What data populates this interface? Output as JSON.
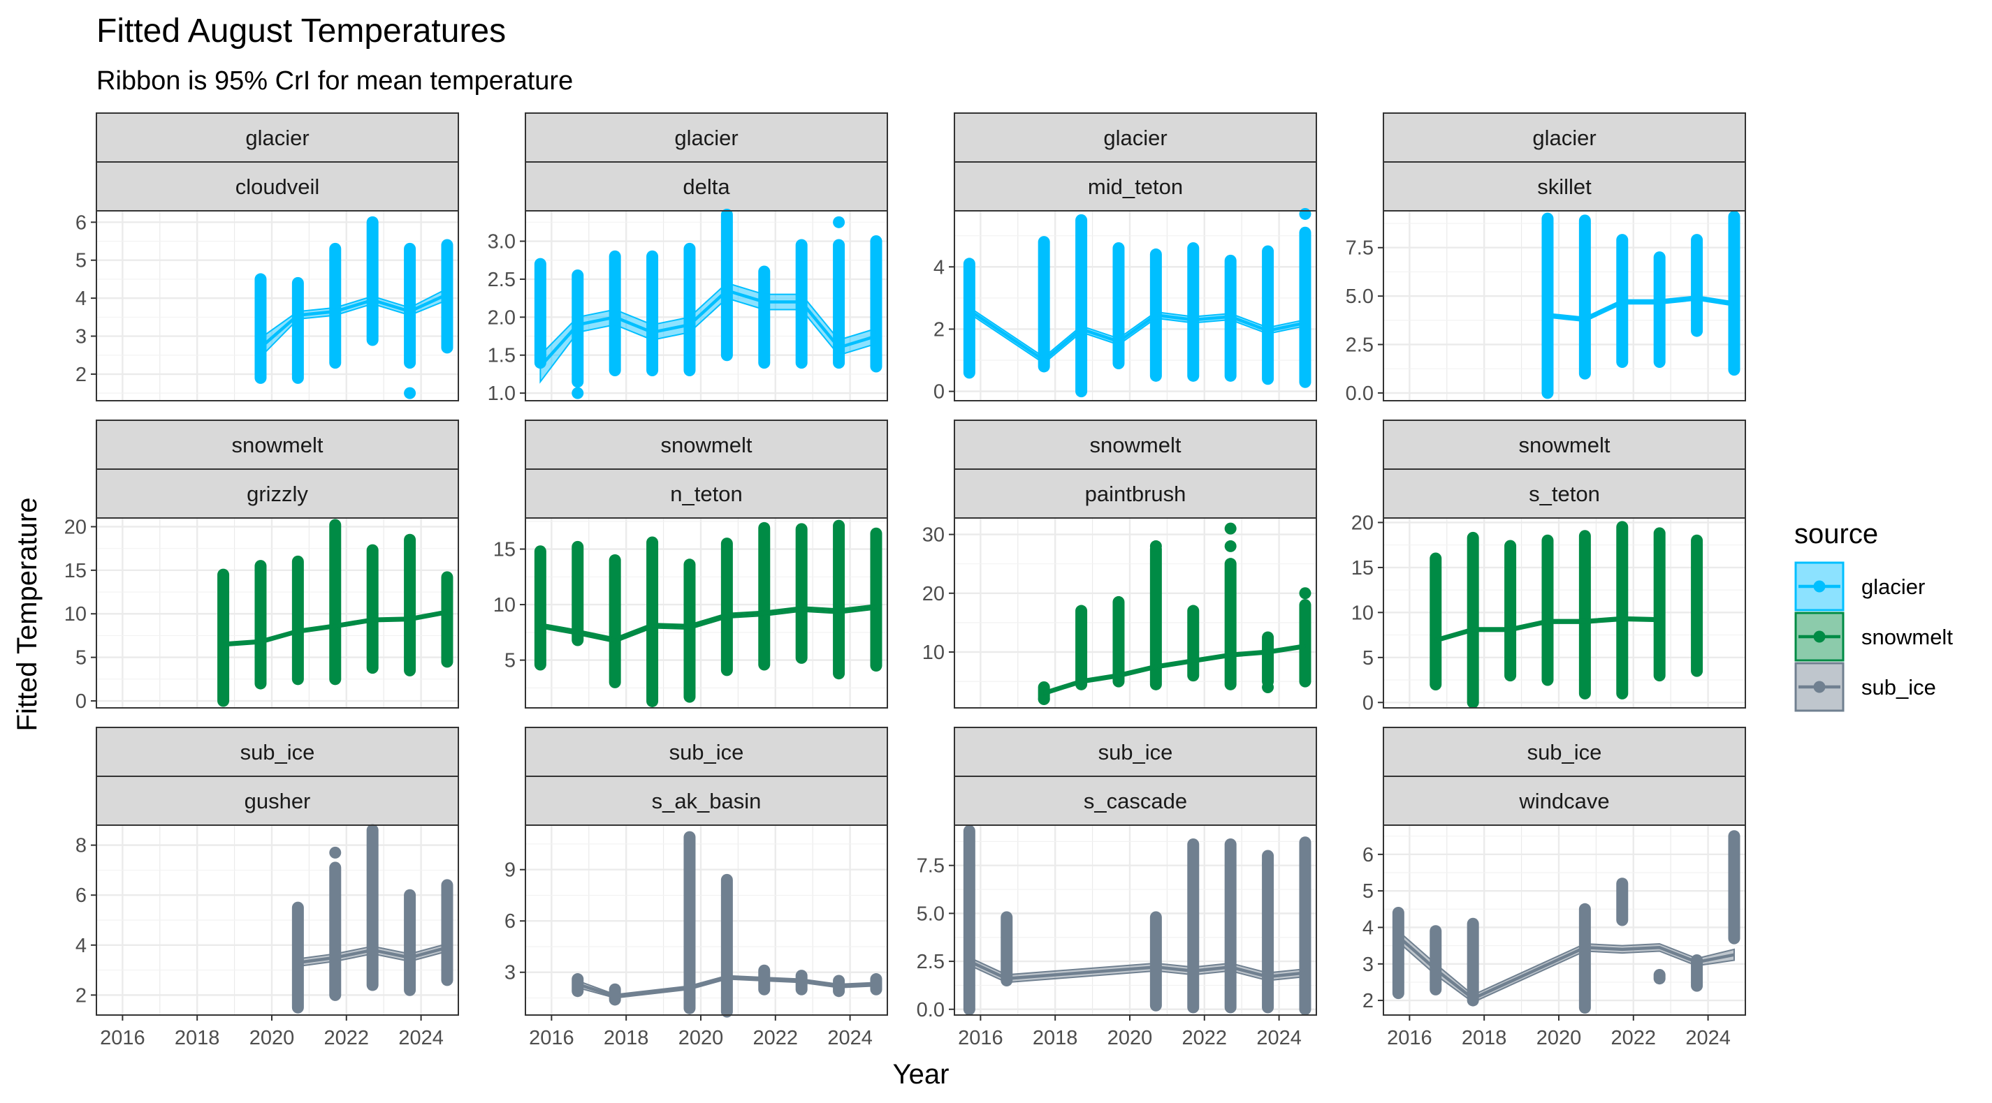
{
  "chart_data": {
    "type": "line",
    "title": "Fitted August Temperatures",
    "subtitle": "Ribbon is 95% CrI for mean temperature",
    "xlabel": "Year",
    "ylabel": "Fitted Temperature",
    "xlim": [
      2015.3,
      2025.0
    ],
    "x_ticks": [
      2016,
      2018,
      2020,
      2022,
      2024
    ],
    "grid": true,
    "legend": {
      "title": "source",
      "position": "right",
      "entries": [
        {
          "name": "glacier",
          "color": "#00BFFF"
        },
        {
          "name": "snowmelt",
          "color": "#008B45"
        },
        {
          "name": "sub_ice",
          "color": "#708090"
        }
      ]
    },
    "panels": [
      {
        "source": "glacier",
        "site": "cloudveil",
        "ylim": [
          1.3,
          6.3
        ],
        "y_ticks": [
          2,
          3,
          4,
          5,
          6
        ],
        "y_tick_labels": [
          "2",
          "3",
          "4",
          "5",
          "6"
        ],
        "x": [
          2019.7,
          2020.7,
          2021.7,
          2022.7,
          2023.7,
          2024.7
        ],
        "mean": [
          2.7,
          3.55,
          3.65,
          3.95,
          3.65,
          4.1
        ],
        "lower": [
          2.45,
          3.45,
          3.55,
          3.85,
          3.55,
          3.95
        ],
        "upper": [
          2.95,
          3.65,
          3.75,
          4.05,
          3.75,
          4.25
        ],
        "pts_min": [
          1.9,
          1.9,
          2.3,
          2.9,
          2.3,
          2.7
        ],
        "pts_max": [
          4.5,
          4.4,
          5.3,
          6.0,
          5.3,
          5.4
        ],
        "outliers": [
          {
            "x": 2023.7,
            "y": 1.5
          }
        ]
      },
      {
        "source": "glacier",
        "site": "delta",
        "ylim": [
          0.9,
          3.4
        ],
        "y_ticks": [
          1.0,
          1.5,
          2.0,
          2.5,
          3.0
        ],
        "y_tick_labels": [
          "1.0",
          "1.5",
          "2.0",
          "2.5",
          "3.0"
        ],
        "x": [
          2015.7,
          2016.7,
          2017.7,
          2018.7,
          2019.7,
          2020.7,
          2021.7,
          2022.7,
          2023.7,
          2024.7
        ],
        "mean": [
          1.35,
          1.9,
          2.0,
          1.8,
          1.9,
          2.35,
          2.2,
          2.2,
          1.6,
          1.75
        ],
        "lower": [
          1.15,
          1.8,
          1.9,
          1.7,
          1.8,
          2.25,
          2.1,
          2.1,
          1.5,
          1.65
        ],
        "upper": [
          1.5,
          2.0,
          2.1,
          1.9,
          2.0,
          2.45,
          2.3,
          2.3,
          1.7,
          1.85
        ],
        "pts_min": [
          1.4,
          1.15,
          1.3,
          1.3,
          1.3,
          1.5,
          1.4,
          1.4,
          1.4,
          1.35
        ],
        "pts_max": [
          2.7,
          2.55,
          2.8,
          2.8,
          2.9,
          3.35,
          2.6,
          2.95,
          2.95,
          3.0
        ],
        "outliers": [
          {
            "x": 2016.7,
            "y": 1.0
          },
          {
            "x": 2023.7,
            "y": 3.25
          }
        ]
      },
      {
        "source": "glacier",
        "site": "mid_teton",
        "ylim": [
          -0.3,
          5.8
        ],
        "y_ticks": [
          0,
          2,
          4
        ],
        "y_tick_labels": [
          "0",
          "2",
          "4"
        ],
        "x": [
          2015.7,
          2017.7,
          2018.7,
          2019.7,
          2020.7,
          2021.7,
          2022.7,
          2023.7,
          2024.7
        ],
        "mean": [
          2.6,
          1.0,
          2.0,
          1.6,
          2.45,
          2.3,
          2.4,
          1.95,
          2.2
        ],
        "lower": [
          2.5,
          0.9,
          1.9,
          1.5,
          2.35,
          2.2,
          2.3,
          1.85,
          2.1
        ],
        "upper": [
          2.7,
          1.1,
          2.1,
          1.7,
          2.55,
          2.4,
          2.5,
          2.05,
          2.3
        ],
        "pts_min": [
          0.6,
          0.8,
          0.0,
          0.9,
          0.5,
          0.5,
          0.5,
          0.4,
          0.3
        ],
        "pts_max": [
          4.1,
          4.8,
          5.5,
          4.6,
          4.4,
          4.6,
          4.2,
          4.5,
          5.1
        ],
        "outliers": [
          {
            "x": 2024.7,
            "y": 5.7
          }
        ]
      },
      {
        "source": "glacier",
        "site": "skillet",
        "ylim": [
          -0.4,
          9.4
        ],
        "y_ticks": [
          0.0,
          2.5,
          5.0,
          7.5
        ],
        "y_tick_labels": [
          "0.0",
          "2.5",
          "5.0",
          "7.5"
        ],
        "x": [
          2019.7,
          2020.7,
          2021.7,
          2022.7,
          2023.7,
          2024.7
        ],
        "mean": [
          4.0,
          3.8,
          4.7,
          4.7,
          4.9,
          4.6
        ],
        "lower": [
          3.9,
          3.7,
          4.6,
          4.6,
          4.8,
          4.5
        ],
        "upper": [
          4.1,
          3.9,
          4.8,
          4.8,
          5.0,
          4.7
        ],
        "pts_min": [
          0.0,
          1.0,
          1.6,
          1.6,
          3.2,
          1.2
        ],
        "pts_max": [
          9.0,
          8.9,
          7.9,
          7.0,
          7.9,
          9.1
        ],
        "outliers": []
      },
      {
        "source": "snowmelt",
        "site": "grizzly",
        "ylim": [
          -0.8,
          21.0
        ],
        "y_ticks": [
          0,
          5,
          10,
          15,
          20
        ],
        "y_tick_labels": [
          "0",
          "5",
          "10",
          "15",
          "20"
        ],
        "x": [
          2018.7,
          2019.7,
          2020.7,
          2021.7,
          2022.7,
          2023.7,
          2024.7
        ],
        "mean": [
          6.5,
          6.8,
          8.0,
          8.6,
          9.3,
          9.4,
          10.2
        ],
        "lower": [
          6.3,
          6.6,
          7.8,
          8.4,
          9.1,
          9.2,
          10.0
        ],
        "upper": [
          6.7,
          7.0,
          8.2,
          8.8,
          9.5,
          9.6,
          10.4
        ],
        "pts_min": [
          0.0,
          2.0,
          2.5,
          2.5,
          3.8,
          3.5,
          4.5
        ],
        "pts_max": [
          14.5,
          15.5,
          16.0,
          20.2,
          17.3,
          18.5,
          14.2
        ],
        "outliers": []
      },
      {
        "source": "snowmelt",
        "site": "n_teton",
        "ylim": [
          0.7,
          17.8
        ],
        "y_ticks": [
          5,
          10,
          15
        ],
        "y_tick_labels": [
          "5",
          "10",
          "15"
        ],
        "x": [
          2015.7,
          2016.7,
          2017.7,
          2018.7,
          2019.7,
          2020.7,
          2021.7,
          2022.7,
          2023.7,
          2024.7
        ],
        "mean": [
          8.1,
          7.5,
          6.8,
          8.1,
          8.0,
          9.0,
          9.2,
          9.6,
          9.4,
          9.8
        ],
        "lower": [
          7.9,
          7.3,
          6.6,
          7.9,
          7.8,
          8.8,
          9.0,
          9.4,
          9.2,
          9.6
        ],
        "upper": [
          8.3,
          7.7,
          7.0,
          8.3,
          8.2,
          9.2,
          9.4,
          9.8,
          9.6,
          10.0
        ],
        "pts_min": [
          4.6,
          6.8,
          3.0,
          1.3,
          1.7,
          4.1,
          4.6,
          5.2,
          3.8,
          4.5
        ],
        "pts_max": [
          14.8,
          15.2,
          14.0,
          15.6,
          13.6,
          15.5,
          16.9,
          16.8,
          17.1,
          16.4
        ],
        "outliers": []
      },
      {
        "source": "snowmelt",
        "site": "paintbrush",
        "ylim": [
          0.5,
          32.8
        ],
        "y_ticks": [
          10,
          20,
          30
        ],
        "y_tick_labels": [
          "10",
          "20",
          "30"
        ],
        "x": [
          2017.7,
          2018.7,
          2019.7,
          2020.7,
          2021.7,
          2022.7,
          2023.7,
          2024.7
        ],
        "mean": [
          3.0,
          5.0,
          6.0,
          7.5,
          8.5,
          9.5,
          10.0,
          11.0
        ],
        "lower": [
          2.7,
          4.7,
          5.7,
          7.2,
          8.2,
          9.2,
          9.7,
          10.7
        ],
        "upper": [
          3.3,
          5.3,
          6.3,
          7.8,
          8.8,
          9.8,
          10.3,
          11.3
        ],
        "pts_min": [
          2.0,
          4.5,
          5.0,
          4.5,
          6.0,
          4.5,
          5.0,
          5.0
        ],
        "pts_max": [
          4.0,
          17.0,
          18.5,
          27.5,
          17.0,
          25.0,
          12.5,
          18.0
        ],
        "outliers": [
          {
            "x": 2017.7,
            "y": 2.0
          },
          {
            "x": 2020.7,
            "y": 28.0
          },
          {
            "x": 2022.7,
            "y": 31.0
          },
          {
            "x": 2022.7,
            "y": 28.0
          },
          {
            "x": 2023.7,
            "y": 4.0
          },
          {
            "x": 2024.7,
            "y": 20.0
          }
        ]
      },
      {
        "source": "snowmelt",
        "site": "s_teton",
        "ylim": [
          -0.6,
          20.5
        ],
        "y_ticks": [
          0,
          5,
          10,
          15,
          20
        ],
        "y_tick_labels": [
          "0",
          "5",
          "10",
          "15",
          "20"
        ],
        "x": [
          2016.7,
          2017.7,
          2018.7,
          2019.7,
          2020.7,
          2021.7,
          2022.7,
          2023.7
        ],
        "mean": [
          6.9,
          8.1,
          8.1,
          9.0,
          9.0,
          9.3,
          9.2,
          null
        ],
        "lower": [
          6.7,
          7.9,
          7.9,
          8.8,
          8.8,
          9.1,
          9.0,
          null
        ],
        "upper": [
          7.1,
          8.3,
          8.3,
          9.2,
          9.2,
          9.5,
          9.4,
          null
        ],
        "pts_min": [
          2.0,
          0.0,
          3.0,
          2.5,
          1.0,
          1.0,
          3.0,
          3.5
        ],
        "pts_max": [
          16.0,
          18.3,
          17.4,
          18.0,
          18.5,
          19.5,
          18.8,
          18.0
        ],
        "outliers": []
      },
      {
        "source": "sub_ice",
        "site": "gusher",
        "ylim": [
          1.2,
          8.8
        ],
        "y_ticks": [
          2,
          4,
          6,
          8
        ],
        "y_tick_labels": [
          "2",
          "4",
          "6",
          "8"
        ],
        "x": [
          2020.7,
          2021.7,
          2022.7,
          2023.7,
          2024.7
        ],
        "mean": [
          3.3,
          3.5,
          3.8,
          3.5,
          3.9
        ],
        "lower": [
          3.15,
          3.35,
          3.65,
          3.35,
          3.75
        ],
        "upper": [
          3.45,
          3.65,
          3.95,
          3.65,
          4.05
        ],
        "pts_min": [
          1.5,
          2.0,
          2.4,
          2.2,
          2.6
        ],
        "pts_max": [
          5.5,
          7.1,
          8.6,
          6.0,
          6.4
        ],
        "outliers": [
          {
            "x": 2021.7,
            "y": 7.7
          }
        ]
      },
      {
        "source": "sub_ice",
        "site": "s_ak_basin",
        "ylim": [
          0.5,
          11.6
        ],
        "y_ticks": [
          3,
          6,
          9
        ],
        "y_tick_labels": [
          "3",
          "6",
          "9"
        ],
        "x": [
          2016.7,
          2017.7,
          2019.7,
          2020.7,
          2021.7,
          2022.7,
          2023.7,
          2024.7
        ],
        "mean": [
          2.3,
          1.6,
          2.1,
          2.7,
          2.6,
          2.5,
          2.2,
          2.3
        ],
        "lower": [
          2.1,
          1.5,
          2.0,
          2.6,
          2.5,
          2.4,
          2.1,
          2.2
        ],
        "upper": [
          2.5,
          1.7,
          2.2,
          2.8,
          2.7,
          2.6,
          2.3,
          2.4
        ],
        "pts_min": [
          1.9,
          1.4,
          0.9,
          0.7,
          2.0,
          2.0,
          1.9,
          2.0
        ],
        "pts_max": [
          2.6,
          2.0,
          10.9,
          8.4,
          3.1,
          2.8,
          2.5,
          2.6
        ],
        "outliers": []
      },
      {
        "source": "sub_ice",
        "site": "s_cascade",
        "ylim": [
          -0.3,
          9.6
        ],
        "y_ticks": [
          0.0,
          2.5,
          5.0,
          7.5
        ],
        "y_tick_labels": [
          "0.0",
          "2.5",
          "5.0",
          "7.5"
        ],
        "x": [
          2015.7,
          2016.7,
          2020.7,
          2021.7,
          2022.7,
          2023.7,
          2024.7
        ],
        "mean": [
          2.5,
          1.6,
          2.2,
          2.0,
          2.2,
          1.7,
          1.9
        ],
        "lower": [
          2.3,
          1.4,
          2.0,
          1.8,
          2.0,
          1.5,
          1.7
        ],
        "upper": [
          2.7,
          1.8,
          2.4,
          2.2,
          2.4,
          1.9,
          2.1
        ],
        "pts_min": [
          0.0,
          1.5,
          0.2,
          0.1,
          0.1,
          0.1,
          0.0
        ],
        "pts_max": [
          9.3,
          4.8,
          4.8,
          8.6,
          8.6,
          8.0,
          8.7
        ],
        "outliers": [
          {
            "x": 2023.7,
            "y": 7.6
          }
        ]
      },
      {
        "source": "sub_ice",
        "site": "windcave",
        "ylim": [
          1.6,
          6.8
        ],
        "y_ticks": [
          2,
          3,
          4,
          5,
          6
        ],
        "y_tick_labels": [
          "2",
          "3",
          "4",
          "5",
          "6"
        ],
        "x": [
          2015.7,
          2016.7,
          2017.7,
          2020.7,
          2021.7,
          2022.7,
          2023.7,
          2024.7
        ],
        "mean": [
          3.75,
          2.85,
          2.05,
          3.45,
          3.4,
          3.45,
          3.05,
          3.25
        ],
        "lower": [
          3.6,
          2.7,
          1.95,
          3.35,
          3.3,
          3.35,
          2.95,
          3.1
        ],
        "upper": [
          3.9,
          3.0,
          2.15,
          3.55,
          3.5,
          3.55,
          3.15,
          3.4
        ],
        "pts_min": [
          2.2,
          2.3,
          2.0,
          1.8,
          4.2,
          2.6,
          2.4,
          3.7
        ],
        "pts_max": [
          4.4,
          3.9,
          4.1,
          4.5,
          5.2,
          2.7,
          3.1,
          6.5
        ],
        "outliers": []
      }
    ]
  }
}
